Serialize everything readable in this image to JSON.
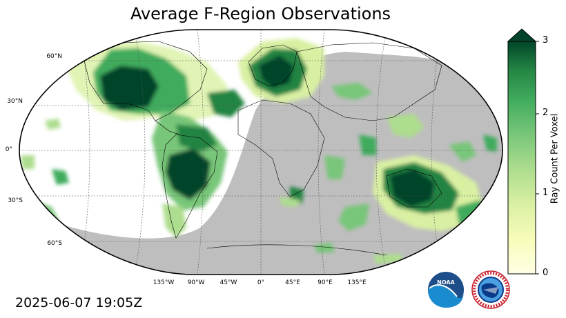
{
  "title": "Average F-Region Observations",
  "timestamp": "2025-06-07 19:05Z",
  "colorbar": {
    "label": "Ray Count Per Voxel",
    "ticks": [
      "0",
      "1",
      "2",
      "3"
    ],
    "range": [
      0,
      3
    ],
    "colormap": "YlGn",
    "extend": "max"
  },
  "map": {
    "projection": "Robinson",
    "lat_labels": [
      "60°N",
      "30°N",
      "0°",
      "30°S",
      "60°S"
    ],
    "lon_labels": [
      "135°W",
      "90°W",
      "45°W",
      "0°",
      "45°E",
      "90°E",
      "135°E"
    ],
    "night_shade_color": "#bebebe",
    "no_data_color": "#ffffff"
  },
  "logos": {
    "noaa": "NOAA",
    "nws": "NATIONAL WEATHER SERVICE"
  }
}
